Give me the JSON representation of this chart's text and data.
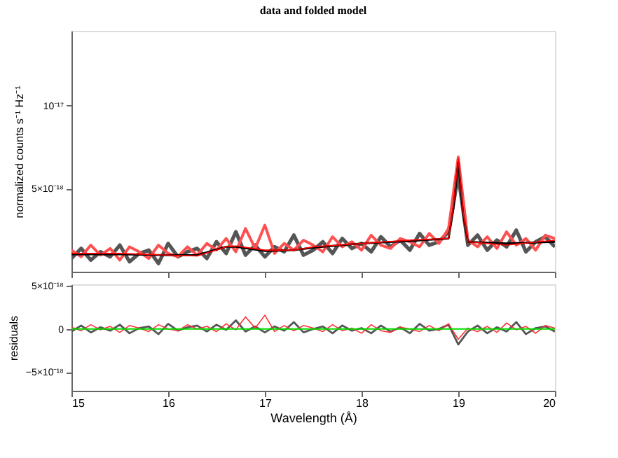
{
  "chart_data": [
    {
      "type": "line",
      "title": "data and folded model",
      "ylabel": "normalized counts s⁻¹ Hz⁻¹",
      "xlim": [
        15,
        20
      ],
      "xticks": [
        15,
        16,
        17,
        18,
        19,
        20
      ],
      "ylim": [
        0,
        1.45e-17
      ],
      "yticks": [
        {
          "value": 5e-18,
          "label": "5×10⁻¹⁸"
        },
        {
          "value": 1e-17,
          "label": "10⁻¹⁷"
        }
      ],
      "tick_labels": "y",
      "grid": false,
      "series": [
        {
          "color": "#555555",
          "x": [
            15.0,
            15.1,
            15.2,
            15.3,
            15.4,
            15.5,
            15.6,
            15.7,
            15.8,
            15.9,
            16.0,
            16.1,
            16.2,
            16.3,
            16.4,
            16.5,
            16.6,
            16.7,
            16.8,
            16.9,
            17.0,
            17.1,
            17.2,
            17.3,
            17.4,
            17.5,
            17.6,
            17.7,
            17.8,
            17.9,
            18.0,
            18.1,
            18.2,
            18.3,
            18.4,
            18.5,
            18.6,
            18.7,
            18.8,
            18.9,
            19.0,
            19.1,
            19.2,
            19.3,
            19.4,
            19.5,
            19.6,
            19.7,
            19.8,
            19.9,
            20.0
          ],
          "values": [
            8e-19,
            1.4e-18,
            7e-19,
            1.2e-18,
            9e-19,
            1.6e-18,
            6e-19,
            1.1e-18,
            1.3e-18,
            5e-19,
            1.7e-18,
            9e-19,
            1.2e-18,
            1.4e-18,
            8e-19,
            1.8e-18,
            1.1e-18,
            2.4e-18,
            1e-18,
            1.6e-18,
            9e-19,
            1.5e-18,
            1.2e-18,
            2.2e-18,
            1e-18,
            1.3e-18,
            1.8e-18,
            1.1e-18,
            2e-18,
            1.4e-18,
            1.7e-18,
            1.2e-18,
            2.1e-18,
            1.5e-18,
            1.9e-18,
            1.3e-18,
            2.3e-18,
            1.6e-18,
            1.8e-18,
            2.4e-18,
            5.8e-18,
            1.6e-18,
            2.2e-18,
            1.3e-18,
            1.9e-18,
            1.5e-18,
            2.5e-18,
            1.2e-18,
            1.8e-18,
            2.1e-18,
            1.5e-18
          ]
        },
        {
          "color": "#ff5050",
          "x": [
            15.0,
            15.1,
            15.2,
            15.3,
            15.4,
            15.5,
            15.6,
            15.7,
            15.8,
            15.9,
            16.0,
            16.1,
            16.2,
            16.3,
            16.4,
            16.5,
            16.6,
            16.7,
            16.8,
            16.9,
            17.0,
            17.1,
            17.2,
            17.3,
            17.4,
            17.5,
            17.6,
            17.7,
            17.8,
            17.9,
            18.0,
            18.1,
            18.2,
            18.3,
            18.4,
            18.5,
            18.6,
            18.7,
            18.8,
            18.9,
            19.0,
            19.1,
            19.2,
            19.3,
            19.4,
            19.5,
            19.6,
            19.7,
            19.8,
            19.9,
            20.0
          ],
          "values": [
            1.3e-18,
            9e-19,
            1.6e-18,
            1e-18,
            1.4e-18,
            7e-19,
            1.5e-18,
            1.2e-18,
            8e-19,
            1.6e-18,
            1.1e-18,
            9e-19,
            1.5e-18,
            1e-18,
            1.7e-18,
            1.3e-18,
            2e-18,
            1.2e-18,
            2.6e-18,
            1.4e-18,
            2.8e-18,
            1.1e-18,
            1.7e-18,
            1.3e-18,
            1.9e-18,
            1.6e-18,
            1.2e-18,
            2.1e-18,
            1.5e-18,
            1.8e-18,
            1.3e-18,
            2.2e-18,
            1.6e-18,
            1.4e-18,
            2e-18,
            1.8e-18,
            1.5e-18,
            2.3e-18,
            1.7e-18,
            2.6e-18,
            6.9e-18,
            1.9e-18,
            1.5e-18,
            2.1e-18,
            1.4e-18,
            2.4e-18,
            1.6e-18,
            2e-18,
            1.3e-18,
            2.2e-18,
            2e-18
          ]
        },
        {
          "color": "#000000",
          "x": [
            15,
            15.5,
            16,
            16.3,
            16.6,
            16.7,
            17,
            17.3,
            17.5,
            18,
            18.5,
            18.9,
            18.95,
            19.0,
            19.05,
            19.1,
            19.5,
            20
          ],
          "values": [
            1.05e-18,
            1.05e-18,
            1e-18,
            1e-18,
            1.5e-18,
            1.5e-18,
            1.25e-18,
            1.3e-18,
            1.45e-18,
            1.7e-18,
            1.85e-18,
            2e-18,
            3.8e-18,
            6.6e-18,
            3.5e-18,
            1.8e-18,
            1.7e-18,
            1.8e-18
          ]
        },
        {
          "color": "#ff0000",
          "x": [
            15,
            15.5,
            16,
            16.3,
            16.6,
            16.7,
            17,
            17.3,
            17.5,
            18,
            18.5,
            18.9,
            18.95,
            19.0,
            19.05,
            19.1,
            19.5,
            20
          ],
          "values": [
            1.1e-18,
            1.1e-18,
            1e-18,
            9.5e-19,
            1.5e-18,
            1.55e-18,
            1.3e-18,
            1.3e-18,
            1.5e-18,
            1.7e-18,
            1.9e-18,
            2e-18,
            4e-18,
            6.8e-18,
            3.6e-18,
            1.8e-18,
            1.6e-18,
            1.9e-18
          ]
        }
      ]
    },
    {
      "type": "line",
      "xlabel": "Wavelength (Å)",
      "ylabel": "residuals",
      "xlim": [
        15,
        20
      ],
      "xticks": [
        15,
        16,
        17,
        18,
        19,
        20
      ],
      "ylim": [
        -7.2e-18,
        5.2e-18
      ],
      "yticks": [
        {
          "value": -5e-18,
          "label": "−5×10⁻¹⁸"
        },
        0,
        {
          "value": 5e-18,
          "label": "5×10⁻¹⁸"
        }
      ],
      "grid": false,
      "ref_lines": [
        {
          "axis": "y",
          "value": 0,
          "color": "#00dd00"
        }
      ],
      "series": [
        {
          "color": "#555555",
          "x": [
            15.0,
            15.1,
            15.2,
            15.3,
            15.4,
            15.5,
            15.6,
            15.7,
            15.8,
            15.9,
            16.0,
            16.1,
            16.2,
            16.3,
            16.4,
            16.5,
            16.6,
            16.7,
            16.8,
            16.9,
            17.0,
            17.1,
            17.2,
            17.3,
            17.4,
            17.5,
            17.6,
            17.7,
            17.8,
            17.9,
            18.0,
            18.1,
            18.2,
            18.3,
            18.4,
            18.5,
            18.6,
            18.7,
            18.8,
            18.9,
            19.0,
            19.1,
            19.2,
            19.3,
            19.4,
            19.5,
            19.6,
            19.7,
            19.8,
            19.9,
            20.0
          ],
          "values": [
            -3e-19,
            4e-19,
            -4e-19,
            2e-19,
            -2e-19,
            5e-19,
            -5e-19,
            1e-19,
            3e-19,
            -6e-19,
            6e-19,
            -2e-19,
            2e-19,
            4e-19,
            -3e-19,
            5e-19,
            -1e-19,
            1e-18,
            -3e-19,
            3e-19,
            -4e-19,
            3e-19,
            -2e-19,
            8e-19,
            -4e-19,
            0.0,
            3e-19,
            -5e-19,
            4e-19,
            -2e-19,
            1e-19,
            -5e-19,
            4e-19,
            -3e-19,
            2e-19,
            -5e-19,
            6e-19,
            -2e-19,
            0.0,
            5e-19,
            -1.8e-18,
            -3e-19,
            4e-19,
            -5e-19,
            2e-19,
            -3e-19,
            8e-19,
            -6e-19,
            1e-19,
            3e-19,
            -3e-19
          ]
        },
        {
          "color": "#ff3030",
          "x": [
            15.0,
            15.1,
            15.2,
            15.3,
            15.4,
            15.5,
            15.6,
            15.7,
            15.8,
            15.9,
            16.0,
            16.1,
            16.2,
            16.3,
            16.4,
            16.5,
            16.6,
            16.7,
            16.8,
            16.9,
            17.0,
            17.1,
            17.2,
            17.3,
            17.4,
            17.5,
            17.6,
            17.7,
            17.8,
            17.9,
            18.0,
            18.1,
            18.2,
            18.3,
            18.4,
            18.5,
            18.6,
            18.7,
            18.8,
            18.9,
            19.0,
            19.1,
            19.2,
            19.3,
            19.4,
            19.5,
            19.6,
            19.7,
            19.8,
            19.9,
            20.0
          ],
          "values": [
            2e-19,
            -2e-19,
            5e-19,
            -1e-19,
            3e-19,
            -4e-19,
            4e-19,
            1e-19,
            -3e-19,
            5e-19,
            0.0,
            -2e-19,
            5e-19,
            0.0,
            3e-19,
            -3e-19,
            6e-19,
            -1e-19,
            1.4e-18,
            1e-19,
            1.6e-18,
            -3e-19,
            4e-19,
            -2e-19,
            4e-19,
            1e-19,
            -3e-19,
            5e-19,
            -2e-19,
            1e-19,
            -5e-19,
            5e-19,
            -2e-19,
            -4e-19,
            2e-19,
            0.0,
            -3e-19,
            4e-19,
            -2e-19,
            6e-19,
            -1.2e-18,
            1e-19,
            -3e-19,
            3e-19,
            -4e-19,
            7e-19,
            -1e-19,
            3e-19,
            -5e-19,
            4e-19,
            1e-19
          ]
        }
      ]
    }
  ]
}
